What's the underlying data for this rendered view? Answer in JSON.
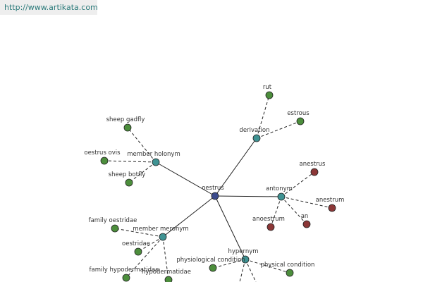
{
  "header": {
    "url": "http://www.artikata.com"
  },
  "nodes": [
    {
      "label": "oestrus",
      "color": "#3b4a8c"
    },
    {
      "label": "derivation",
      "color": "#3f9393"
    },
    {
      "label": "rut",
      "color": "#4c8e3c"
    },
    {
      "label": "estrous",
      "color": "#4c8e3c"
    },
    {
      "label": "antonym",
      "color": "#3f9393"
    },
    {
      "label": "anestrus",
      "color": "#8c3737"
    },
    {
      "label": "anestrum",
      "color": "#8c3737"
    },
    {
      "label": "an",
      "color": "#8c3737"
    },
    {
      "label": "anoestrum",
      "color": "#8c3737"
    },
    {
      "label": "hypernym",
      "color": "#3f9393"
    },
    {
      "label": "physiological condition",
      "color": "#4c8e3c"
    },
    {
      "label": "physical condition",
      "color": "#4c8e3c"
    },
    {
      "label": "member meronym",
      "color": "#3f9393"
    },
    {
      "label": "family oestridae",
      "color": "#4c8e3c"
    },
    {
      "label": "oestridae",
      "color": "#4c8e3c"
    },
    {
      "label": "family hypodermatidae",
      "color": "#4c8e3c"
    },
    {
      "label": "hypodermatidae",
      "color": "#4c8e3c"
    },
    {
      "label": "member holonym",
      "color": "#3f9393"
    },
    {
      "label": "sheep gadfly",
      "color": "#4c8e3c"
    },
    {
      "label": "oestrus ovis",
      "color": "#4c8e3c"
    },
    {
      "label": "sheep botfly",
      "color": "#4c8e3c"
    }
  ],
  "edges": [
    {
      "from": 0,
      "to": 1,
      "dashed": false
    },
    {
      "from": 0,
      "to": 4,
      "dashed": false
    },
    {
      "from": 0,
      "to": 9,
      "dashed": false
    },
    {
      "from": 0,
      "to": 12,
      "dashed": false
    },
    {
      "from": 0,
      "to": 17,
      "dashed": false
    },
    {
      "from": 1,
      "to": 2,
      "dashed": true
    },
    {
      "from": 1,
      "to": 3,
      "dashed": true
    },
    {
      "from": 4,
      "to": 5,
      "dashed": true
    },
    {
      "from": 4,
      "to": 6,
      "dashed": true
    },
    {
      "from": 4,
      "to": 7,
      "dashed": true
    },
    {
      "from": 4,
      "to": 8,
      "dashed": true
    },
    {
      "from": 9,
      "to": 10,
      "dashed": true
    },
    {
      "from": 9,
      "to": 11,
      "dashed": true
    },
    {
      "from": 12,
      "to": 13,
      "dashed": true
    },
    {
      "from": 12,
      "to": 14,
      "dashed": true
    },
    {
      "from": 12,
      "to": 15,
      "dashed": true
    },
    {
      "from": 12,
      "to": 16,
      "dashed": true
    },
    {
      "from": 17,
      "to": 18,
      "dashed": true
    },
    {
      "from": 17,
      "to": 19,
      "dashed": true
    },
    {
      "from": 17,
      "to": 20,
      "dashed": true
    }
  ]
}
